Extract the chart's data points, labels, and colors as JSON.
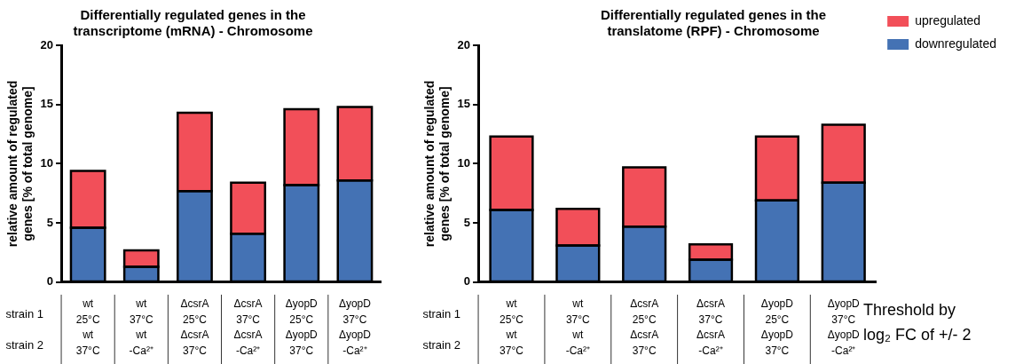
{
  "chart_data": [
    {
      "type": "bar",
      "title": "Differentially regulated genes in the\ntranscriptome (mRNA) - Chromosome",
      "ylabel": "relative amount of regulated\ngenes [% of total genome]",
      "categories": [
        "wt\n25°C\nwt\n37°C",
        "wt\n37°C\nwt\n-Ca²⁺",
        "ΔcsrA\n25°C\nΔcsrA\n37°C",
        "ΔcsrA\n37°C\nΔcsrA\n-Ca²⁺",
        "ΔyopD\n25°C\nΔyopD\n37°C",
        "ΔyopD\n37°C\nΔyopD\n-Ca²⁺"
      ],
      "stacked": true,
      "ylim": [
        0,
        20
      ],
      "yticks": [
        0,
        5,
        10,
        15,
        20
      ],
      "grid": false,
      "legend": false,
      "series": [
        {
          "color": "#4472b4",
          "values": [
            4.6,
            1.3,
            7.7,
            4.1,
            8.2,
            8.6
          ]
        },
        {
          "color": "#f24f59",
          "values": [
            4.8,
            1.4,
            6.6,
            4.3,
            6.4,
            6.2
          ]
        }
      ],
      "annotations": [
        "strain 1",
        "strain 2"
      ]
    },
    {
      "type": "bar",
      "title": "Differentially regulated genes in the\ntranslatome (RPF) - Chromosome",
      "ylabel": "relative amount of regulated\ngenes [% of total genome]",
      "categories": [
        "wt\n25°C\nwt\n37°C",
        "wt\n37°C\nwt\n-Ca²⁺",
        "ΔcsrA\n25°C\nΔcsrA\n37°C",
        "ΔcsrA\n37°C\nΔcsrA\n-Ca²⁺",
        "ΔyopD\n25°C\nΔyopD\n37°C",
        "ΔyopD\n37°C\nΔyopD\n-Ca²⁺"
      ],
      "stacked": true,
      "ylim": [
        0,
        20
      ],
      "yticks": [
        0,
        5,
        10,
        15,
        20
      ],
      "grid": false,
      "legend": "top right",
      "series": [
        {
          "name": "downregulated",
          "color": "#4472b4",
          "values": [
            6.1,
            3.1,
            4.7,
            1.9,
            6.9,
            8.4
          ]
        },
        {
          "name": "upregulated",
          "color": "#f24f59",
          "values": [
            6.2,
            3.1,
            5.0,
            1.3,
            5.4,
            4.9
          ]
        }
      ],
      "annotations": [
        "strain 1",
        "strain 2",
        "Threshold by\nlog₂ FC of +/- 2"
      ]
    }
  ]
}
